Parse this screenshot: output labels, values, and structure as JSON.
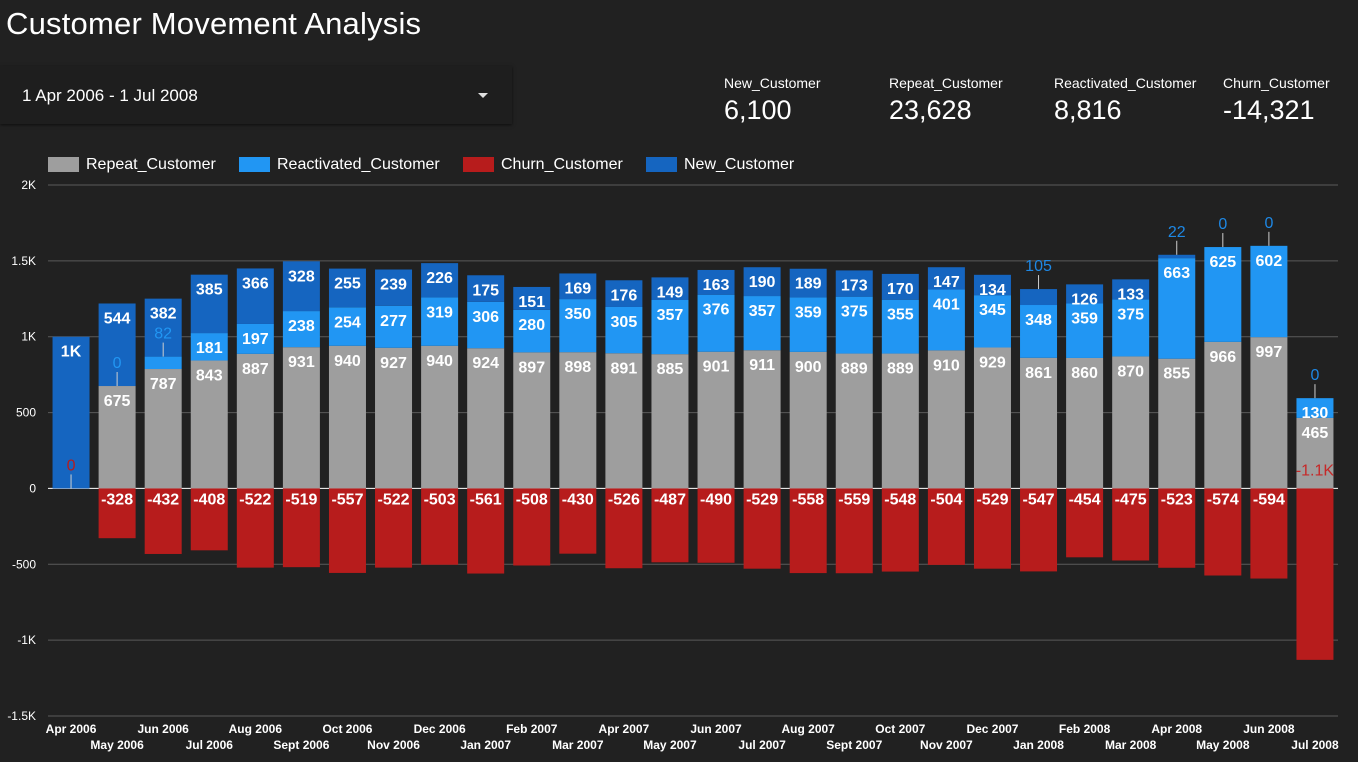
{
  "header": {
    "title": "Customer Movement Analysis"
  },
  "date_range": {
    "label": "1 Apr 2006 - 1 Jul 2008",
    "icon": "chevron-down-icon"
  },
  "scorecards": [
    {
      "label": "New_Customer",
      "value": "6,100"
    },
    {
      "label": "Repeat_Customer",
      "value": "23,628"
    },
    {
      "label": "Reactivated_Customer",
      "value": "8,816"
    },
    {
      "label": "Churn_Customer",
      "value": "-14,321"
    }
  ],
  "legend": [
    {
      "label": "Repeat_Customer",
      "color": "#9e9e9e"
    },
    {
      "label": "Reactivated_Customer",
      "color": "#2196f3"
    },
    {
      "label": "Churn_Customer",
      "color": "#b71c1c"
    },
    {
      "label": "New_Customer",
      "color": "#1565c0"
    }
  ],
  "chart_data": {
    "type": "bar",
    "stacked": true,
    "grid": true,
    "legend_position": "top-left",
    "ylim": [
      -1500,
      2000
    ],
    "y_ticks": [
      -1500,
      -1000,
      -500,
      0,
      500,
      1000,
      1500,
      2000
    ],
    "y_tick_labels": [
      "-1.5K",
      "-1K",
      "-500",
      "0",
      "500",
      "1K",
      "1.5K",
      "2K"
    ],
    "categories": [
      "Apr 2006",
      "May 2006",
      "Jun 2006",
      "Jul 2006",
      "Aug 2006",
      "Sept 2006",
      "Oct 2006",
      "Nov 2006",
      "Dec 2006",
      "Jan 2007",
      "Feb 2007",
      "Mar 2007",
      "Apr 2007",
      "May 2007",
      "Jun 2007",
      "Jul 2007",
      "Aug 2007",
      "Sept 2007",
      "Oct 2007",
      "Nov 2007",
      "Dec 2007",
      "Jan 2008",
      "Feb 2008",
      "Mar 2008",
      "Apr 2008",
      "May 2008",
      "Jun 2008",
      "Jul 2008"
    ],
    "series": [
      {
        "name": "Repeat_Customer",
        "color": "#9e9e9e",
        "values": [
          0,
          675,
          787,
          843,
          887,
          931,
          940,
          927,
          940,
          924,
          897,
          898,
          891,
          885,
          901,
          911,
          900,
          889,
          889,
          910,
          929,
          861,
          860,
          870,
          855,
          966,
          997,
          465
        ],
        "labels": [
          "",
          "675",
          "787",
          "843",
          "887",
          "931",
          "940",
          "927",
          "940",
          "924",
          "897",
          "898",
          "891",
          "885",
          "901",
          "911",
          "900",
          "889",
          "889",
          "910",
          "929",
          "861",
          "860",
          "870",
          "855",
          "966",
          "997",
          "465"
        ]
      },
      {
        "name": "Reactivated_Customer",
        "color": "#2196f3",
        "values": [
          0,
          0,
          82,
          181,
          197,
          238,
          254,
          277,
          319,
          306,
          280,
          350,
          305,
          357,
          376,
          357,
          359,
          375,
          355,
          401,
          345,
          348,
          359,
          375,
          663,
          625,
          602,
          130
        ],
        "labels": [
          "",
          "0",
          "82",
          "181",
          "197",
          "238",
          "254",
          "277",
          "319",
          "306",
          "280",
          "350",
          "305",
          "357",
          "376",
          "357",
          "359",
          "375",
          "355",
          "401",
          "345",
          "348",
          "359",
          "375",
          "663",
          "625",
          "602",
          "130"
        ]
      },
      {
        "name": "New_Customer",
        "color": "#1565c0",
        "values": [
          1000,
          544,
          382,
          385,
          366,
          328,
          255,
          239,
          226,
          175,
          151,
          169,
          176,
          149,
          163,
          190,
          189,
          173,
          170,
          147,
          134,
          105,
          126,
          133,
          22,
          0,
          0,
          0
        ],
        "labels": [
          "1K",
          "544",
          "382",
          "385",
          "366",
          "328",
          "255",
          "239",
          "226",
          "175",
          "151",
          "169",
          "176",
          "149",
          "163",
          "190",
          "189",
          "173",
          "170",
          "147",
          "134",
          "105",
          "126",
          "133",
          "22",
          "0",
          "0",
          "0"
        ]
      },
      {
        "name": "Churn_Customer",
        "color": "#b71c1c",
        "values": [
          0,
          -328,
          -432,
          -408,
          -522,
          -519,
          -557,
          -522,
          -503,
          -561,
          -508,
          -430,
          -526,
          -487,
          -490,
          -529,
          -558,
          -559,
          -548,
          -504,
          -529,
          -547,
          -454,
          -475,
          -523,
          -574,
          -594,
          -1130
        ],
        "labels": [
          "0",
          "-328",
          "-432",
          "-408",
          "-522",
          "-519",
          "-557",
          "-522",
          "-503",
          "-561",
          "-508",
          "-430",
          "-526",
          "-487",
          "-490",
          "-529",
          "-558",
          "-559",
          "-548",
          "-504",
          "-529",
          "-547",
          "-454",
          "-475",
          "-523",
          "-574",
          "-594",
          "-1.1K"
        ]
      }
    ]
  }
}
